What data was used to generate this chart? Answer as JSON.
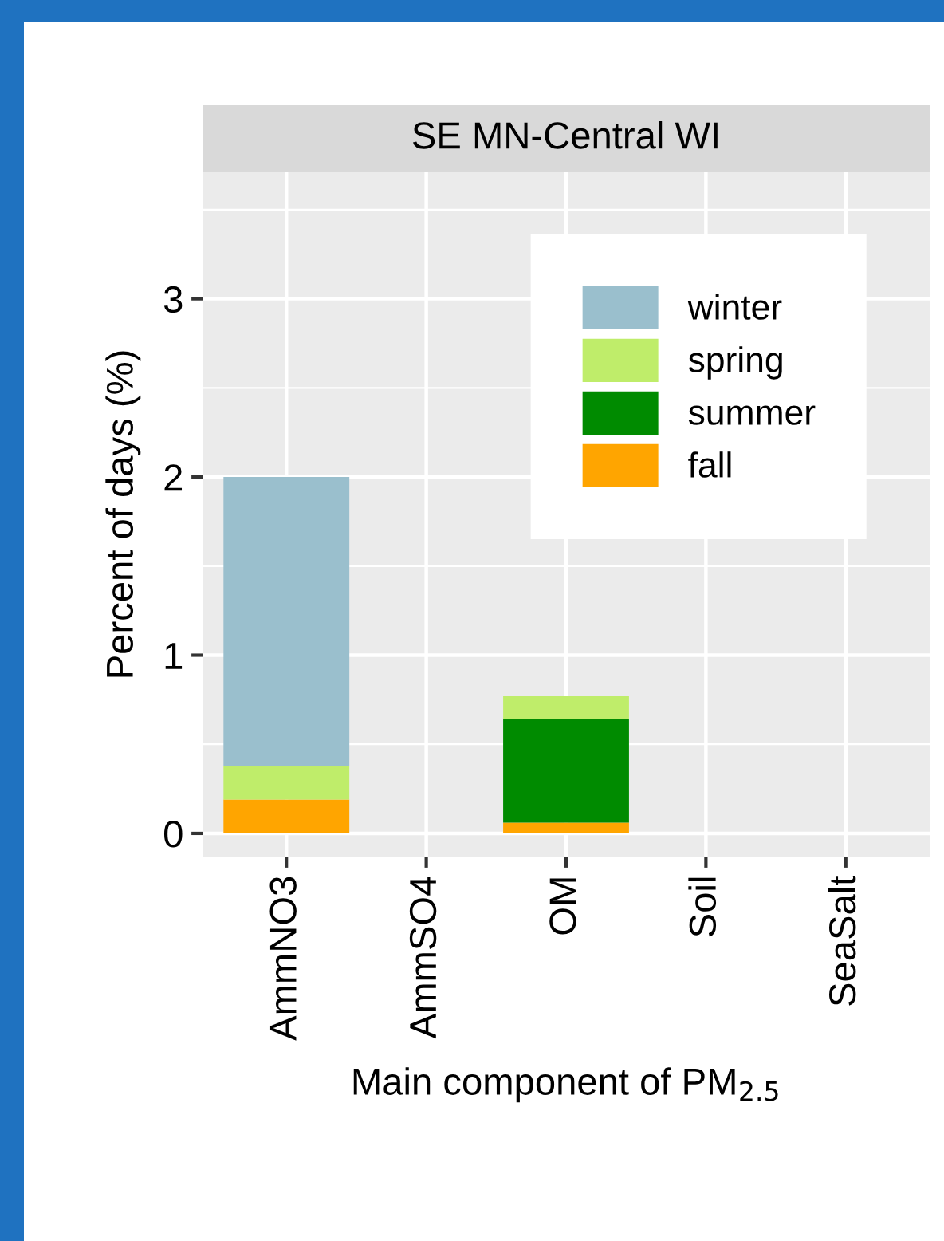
{
  "chart_data": {
    "type": "bar",
    "title": "SE MN-Central WI",
    "xlabel": "Main component of PM$_{2.5}$",
    "ylabel": "Percent of days (%)",
    "categories": [
      "AmmNO3",
      "AmmSO4",
      "OM",
      "Soil",
      "SeaSalt"
    ],
    "stacked": true,
    "series": [
      {
        "name": "fall",
        "color": "#ffa500",
        "values": [
          0.19,
          0,
          0.06,
          0,
          0
        ]
      },
      {
        "name": "summer",
        "color": "#008b00",
        "values": [
          0,
          0,
          0.58,
          0,
          0
        ]
      },
      {
        "name": "spring",
        "color": "#bfed6a",
        "values": [
          0.19,
          0,
          0.13,
          0,
          0
        ]
      },
      {
        "name": "winter",
        "color": "#9abfcd",
        "values": [
          1.62,
          0,
          0,
          0,
          0
        ]
      }
    ],
    "ylim": [
      -0.13,
      3.71
    ],
    "yticks": [
      0,
      1,
      2,
      3
    ],
    "grid": true,
    "legend": "top right"
  }
}
